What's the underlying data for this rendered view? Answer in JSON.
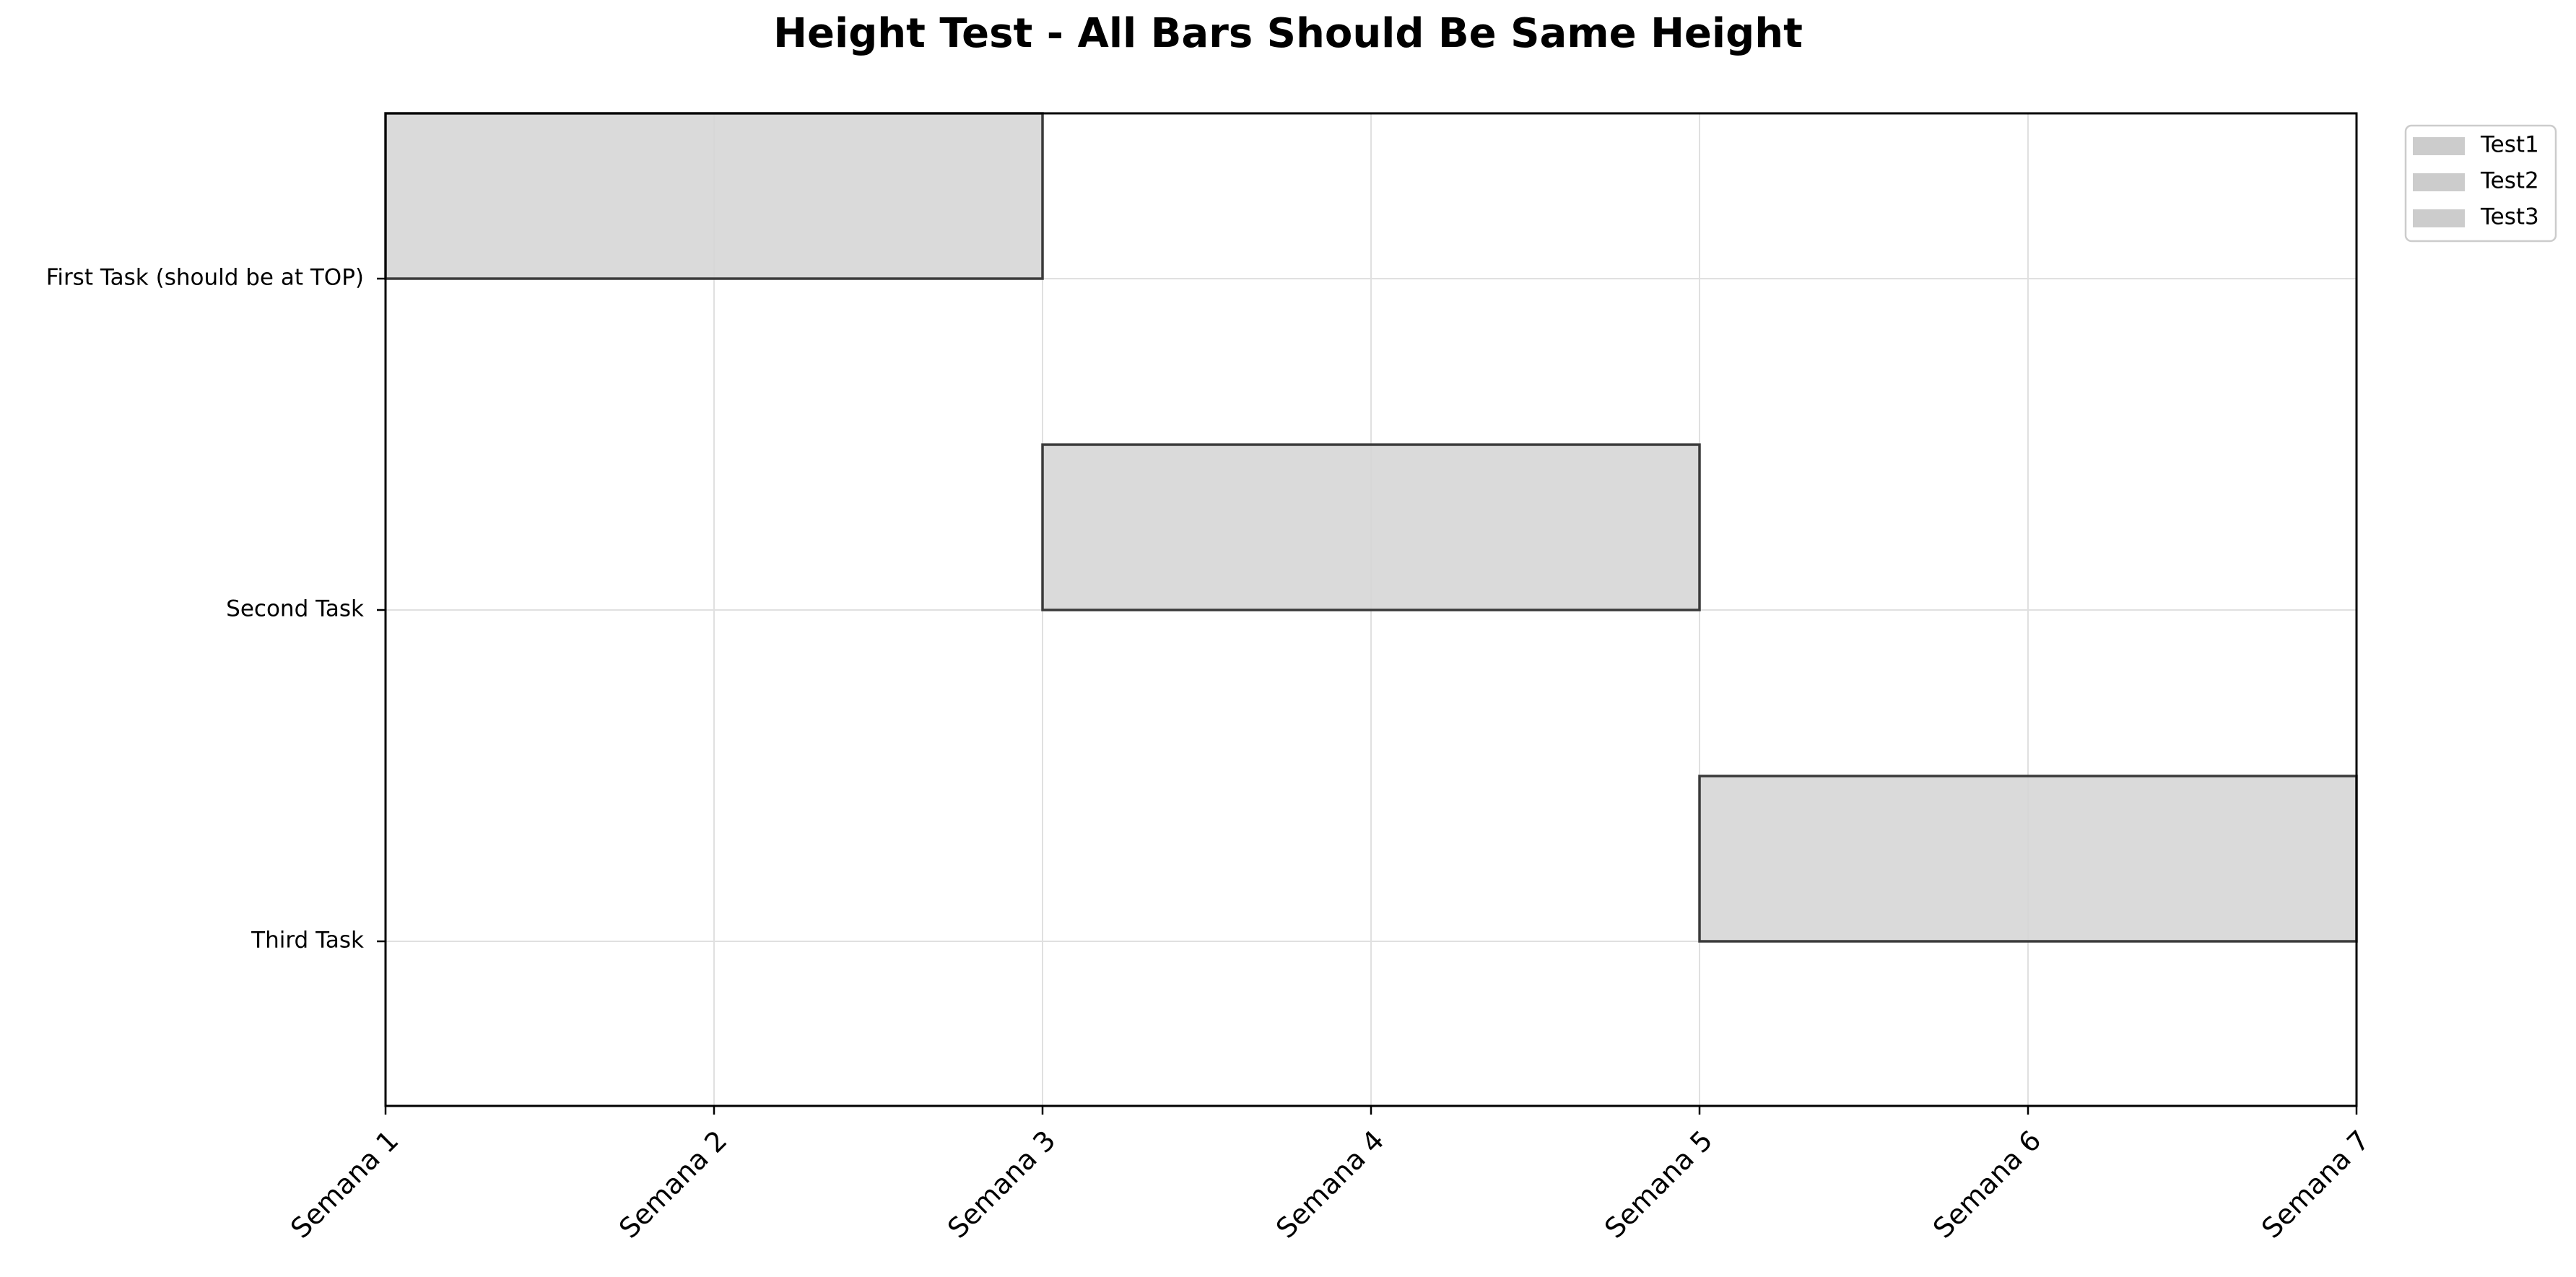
{
  "chart_data": {
    "type": "gantt",
    "title": "Height Test - All Bars Should Be Same Height",
    "xlabel": "",
    "ylabel": "",
    "x_ticks": [
      "Semana 1",
      "Semana 2",
      "Semana 3",
      "Semana 4",
      "Semana 5",
      "Semana 6",
      "Semana 7"
    ],
    "xlim": [
      1,
      7
    ],
    "tasks": [
      {
        "label": "First Task (should be at TOP)",
        "start": 1,
        "end": 3
      },
      {
        "label": "Second Task",
        "start": 3,
        "end": 5
      },
      {
        "label": "Third Task",
        "start": 5,
        "end": 7
      }
    ],
    "legend": {
      "position": "upper right, outside plot",
      "entries": [
        "Test1",
        "Test2",
        "Test3"
      ]
    },
    "grid": true,
    "colors": {
      "bar_fill": "#d6d6d6",
      "bar_edge": "#3a3a3a",
      "legend_swatch": "#cccccc",
      "grid": "#e0e0e0",
      "axis": "#000000"
    }
  }
}
